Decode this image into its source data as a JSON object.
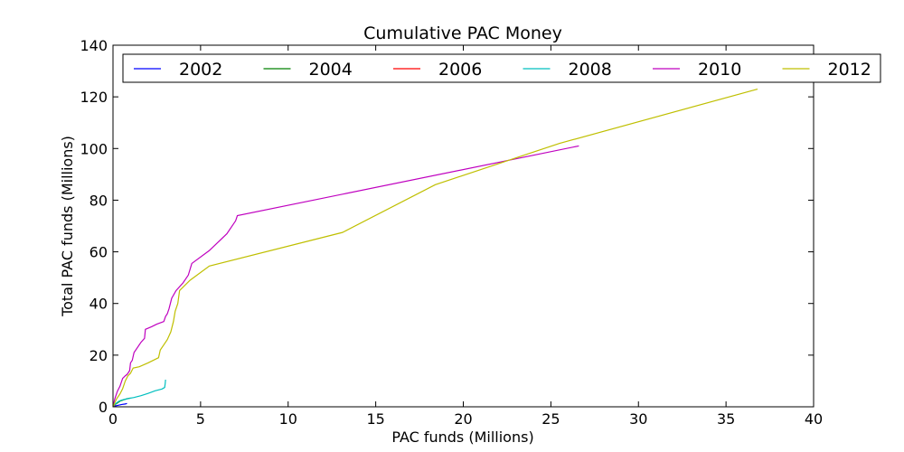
{
  "chart_data": {
    "type": "line",
    "title": "Cumulative PAC Money",
    "xlabel": "PAC funds (Millions)",
    "ylabel": "Total PAC funds (Millions)",
    "xlim": [
      0,
      40
    ],
    "ylim": [
      0,
      140
    ],
    "xticks": [
      0,
      5,
      10,
      15,
      20,
      25,
      30,
      35,
      40
    ],
    "yticks": [
      0,
      20,
      40,
      60,
      80,
      100,
      120,
      140
    ],
    "grid": false,
    "legend_position": "top, inside, single row",
    "series": [
      {
        "name": "2002",
        "color": "#0000ff",
        "points": [
          [
            0,
            0
          ],
          [
            0.1,
            0.3
          ],
          [
            0.3,
            0.6
          ],
          [
            0.5,
            0.9
          ],
          [
            0.7,
            1.1
          ],
          [
            0.8,
            1.3
          ]
        ]
      },
      {
        "name": "2004",
        "color": "#008000",
        "points": [
          [
            0,
            0
          ],
          [
            0.1,
            0.8
          ],
          [
            0.25,
            1.5
          ],
          [
            0.4,
            2.2
          ],
          [
            0.6,
            2.7
          ],
          [
            0.8,
            3.1
          ],
          [
            1.0,
            3.4
          ]
        ]
      },
      {
        "name": "2006",
        "color": "#ff0000",
        "points": [
          [
            0,
            0
          ],
          [
            0.05,
            0.3
          ],
          [
            0.1,
            0.6
          ],
          [
            0.15,
            0.9
          ]
        ]
      },
      {
        "name": "2008",
        "color": "#00bfbf",
        "points": [
          [
            0,
            0
          ],
          [
            0.1,
            0.8
          ],
          [
            0.2,
            1.5
          ],
          [
            0.35,
            2.2
          ],
          [
            0.5,
            2.6
          ],
          [
            0.8,
            3.1
          ],
          [
            1.2,
            3.6
          ],
          [
            1.6,
            4.3
          ],
          [
            2.0,
            5.2
          ],
          [
            2.4,
            6.2
          ],
          [
            2.8,
            6.9
          ],
          [
            2.95,
            7.5
          ],
          [
            2.98,
            9.0
          ],
          [
            3.0,
            10.5
          ]
        ]
      },
      {
        "name": "2010",
        "color": "#bf00bf",
        "points": [
          [
            0,
            0
          ],
          [
            0.1,
            3
          ],
          [
            0.25,
            6
          ],
          [
            0.4,
            8
          ],
          [
            0.55,
            11
          ],
          [
            0.7,
            12
          ],
          [
            0.8,
            12.5
          ],
          [
            0.95,
            14
          ],
          [
            1.0,
            17
          ],
          [
            1.1,
            18
          ],
          [
            1.2,
            21
          ],
          [
            1.4,
            23
          ],
          [
            1.6,
            25
          ],
          [
            1.8,
            26.5
          ],
          [
            1.85,
            30
          ],
          [
            2.2,
            31
          ],
          [
            2.5,
            32
          ],
          [
            2.9,
            33
          ],
          [
            3.0,
            35
          ],
          [
            3.1,
            36
          ],
          [
            3.2,
            38
          ],
          [
            3.35,
            42
          ],
          [
            3.6,
            45
          ],
          [
            4.0,
            48
          ],
          [
            4.3,
            51
          ],
          [
            4.5,
            55.5
          ],
          [
            5.5,
            60.5
          ],
          [
            6.5,
            67
          ],
          [
            7.0,
            72
          ],
          [
            7.1,
            74
          ],
          [
            26.6,
            101
          ]
        ]
      },
      {
        "name": "2012",
        "color": "#bfbf00",
        "points": [
          [
            0,
            0
          ],
          [
            0.2,
            3
          ],
          [
            0.4,
            5
          ],
          [
            0.55,
            7
          ],
          [
            0.7,
            10
          ],
          [
            0.85,
            12
          ],
          [
            1.0,
            13
          ],
          [
            1.15,
            15
          ],
          [
            1.5,
            15.5
          ],
          [
            2.0,
            17
          ],
          [
            2.6,
            19
          ],
          [
            2.7,
            22
          ],
          [
            2.9,
            24
          ],
          [
            3.1,
            26
          ],
          [
            3.3,
            29
          ],
          [
            3.45,
            33
          ],
          [
            3.55,
            37
          ],
          [
            3.7,
            40
          ],
          [
            3.8,
            45
          ],
          [
            4.4,
            49
          ],
          [
            5.5,
            54.5
          ],
          [
            13.1,
            67.5
          ],
          [
            18.4,
            86
          ],
          [
            25.5,
            102
          ],
          [
            36.8,
            123
          ]
        ]
      }
    ]
  }
}
